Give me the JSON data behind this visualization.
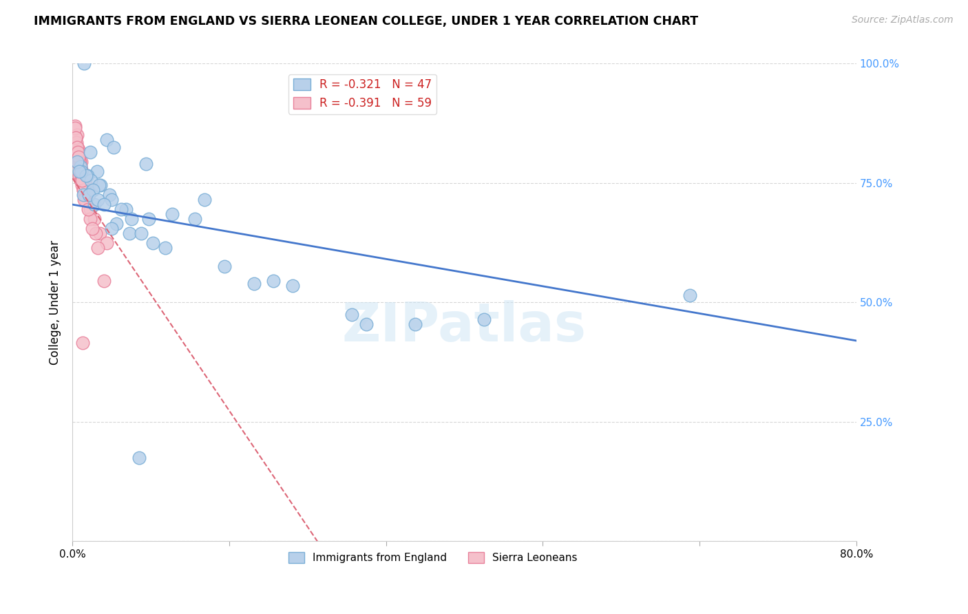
{
  "title": "IMMIGRANTS FROM ENGLAND VS SIERRA LEONEAN COLLEGE, UNDER 1 YEAR CORRELATION CHART",
  "source": "Source: ZipAtlas.com",
  "ylabel": "College, Under 1 year",
  "xlim": [
    0.0,
    80.0
  ],
  "ylim": [
    0.0,
    100.0
  ],
  "watermark": "ZIPatlas",
  "legend_label1": "Immigrants from England",
  "legend_label2": "Sierra Leoneans",
  "series1_color": "#b8d0ea",
  "series1_edge_color": "#7aaed6",
  "series2_color": "#f5c0cb",
  "series2_edge_color": "#e8809a",
  "trend1_color": "#4477cc",
  "trend2_color": "#dd6677",
  "trend1_x0": 0.0,
  "trend1_y0": 70.5,
  "trend1_x1": 80.0,
  "trend1_y1": 42.0,
  "trend2_x0": 0.0,
  "trend2_y0": 76.0,
  "trend2_x1": 25.0,
  "trend2_y1": 0.0,
  "blue_scatter_x": [
    1.2,
    3.5,
    1.8,
    0.8,
    2.5,
    1.5,
    4.2,
    7.5,
    13.5,
    2.9,
    2.0,
    3.8,
    5.5,
    6.0,
    4.0,
    7.8,
    10.2,
    2.2,
    4.5,
    1.9,
    0.9,
    2.7,
    4.0,
    1.1,
    5.8,
    8.2,
    12.5,
    18.5,
    22.5,
    28.5,
    35.0,
    42.0,
    63.0,
    1.4,
    2.1,
    5.0,
    7.0,
    9.5,
    15.5,
    20.5,
    30.0,
    0.5,
    1.7,
    2.6,
    3.2,
    0.7,
    6.8
  ],
  "blue_scatter_y": [
    100.0,
    84.0,
    81.5,
    78.5,
    77.5,
    76.5,
    82.5,
    79.0,
    71.5,
    74.5,
    73.5,
    72.5,
    69.5,
    67.5,
    71.5,
    67.5,
    68.5,
    70.5,
    66.5,
    75.5,
    77.5,
    74.5,
    65.5,
    72.5,
    64.5,
    62.5,
    67.5,
    54.0,
    53.5,
    47.5,
    45.5,
    46.5,
    51.5,
    76.5,
    73.5,
    69.5,
    64.5,
    61.5,
    57.5,
    54.5,
    45.5,
    79.5,
    72.5,
    71.5,
    70.5,
    77.5,
    17.5
  ],
  "pink_scatter_x": [
    0.3,
    0.5,
    0.4,
    0.6,
    0.5,
    0.7,
    0.6,
    0.8,
    0.9,
    0.7,
    0.8,
    1.0,
    1.1,
    1.2,
    1.3,
    0.9,
    1.0,
    1.1,
    1.2,
    1.4,
    1.5,
    1.8,
    2.2,
    2.8,
    3.5,
    0.35,
    0.45,
    0.55,
    0.65,
    0.75,
    0.85,
    0.95,
    1.05,
    1.15,
    1.25,
    1.8,
    2.4,
    3.2,
    0.4,
    0.5,
    0.6,
    0.7,
    0.8,
    0.9,
    1.0,
    1.1,
    1.2,
    1.6,
    2.0,
    2.6,
    0.25,
    0.35,
    0.45,
    0.55,
    0.65,
    0.75,
    0.85,
    0.95,
    1.05
  ],
  "pink_scatter_y": [
    87.0,
    85.0,
    83.0,
    82.0,
    81.0,
    80.0,
    79.0,
    78.0,
    77.0,
    76.5,
    75.5,
    74.5,
    73.5,
    72.5,
    71.5,
    79.5,
    77.5,
    76.5,
    75.5,
    74.5,
    73.5,
    69.5,
    67.5,
    64.5,
    62.5,
    84.5,
    82.5,
    81.5,
    80.5,
    79.5,
    78.5,
    76.5,
    75.5,
    73.5,
    72.5,
    67.5,
    64.5,
    54.5,
    83.5,
    81.5,
    80.5,
    79.5,
    77.5,
    76.5,
    75.5,
    73.5,
    71.5,
    69.5,
    65.5,
    61.5,
    86.5,
    84.5,
    82.5,
    81.5,
    80.5,
    78.5,
    77.5,
    75.5,
    41.5
  ]
}
